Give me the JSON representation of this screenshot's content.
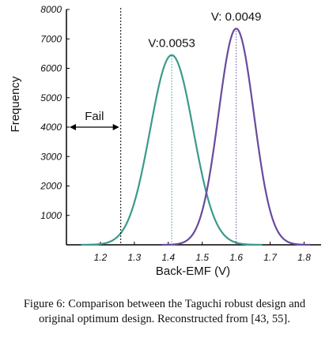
{
  "chart_data": {
    "type": "line",
    "xlabel": "Back-EMF (V)",
    "ylabel": "Frequency",
    "xlim": [
      1.1,
      1.85
    ],
    "ylim": [
      0,
      8000
    ],
    "x_ticks": [
      "1.2",
      "1.3",
      "1.4",
      "1.5",
      "1.6",
      "1.7",
      "1.8"
    ],
    "y_ticks": [
      "1000",
      "2000",
      "3000",
      "4000",
      "5000",
      "6000",
      "7000",
      "8000"
    ],
    "grid": false,
    "series": [
      {
        "mean": 1.41,
        "peak": 6450,
        "sd": 0.0635,
        "color": "#3a9a8c"
      },
      {
        "mean": 1.6,
        "peak": 7350,
        "sd": 0.052,
        "color": "#6a4a9c"
      }
    ],
    "peak_markers": [
      {
        "x": 1.41,
        "y": 6450,
        "label": "V:0.0053",
        "color": "#3a9a8c"
      },
      {
        "x": 1.6,
        "y": 7350,
        "label": "V: 0.0049",
        "color": "#6a4a9c"
      }
    ],
    "fail_threshold": {
      "x": 1.26,
      "label": "Fail"
    }
  },
  "caption": {
    "line1": "Figure 6: Comparison between the Taguchi robust design and",
    "line2": "original optimum design. Reconstructed from [43, 55]."
  }
}
